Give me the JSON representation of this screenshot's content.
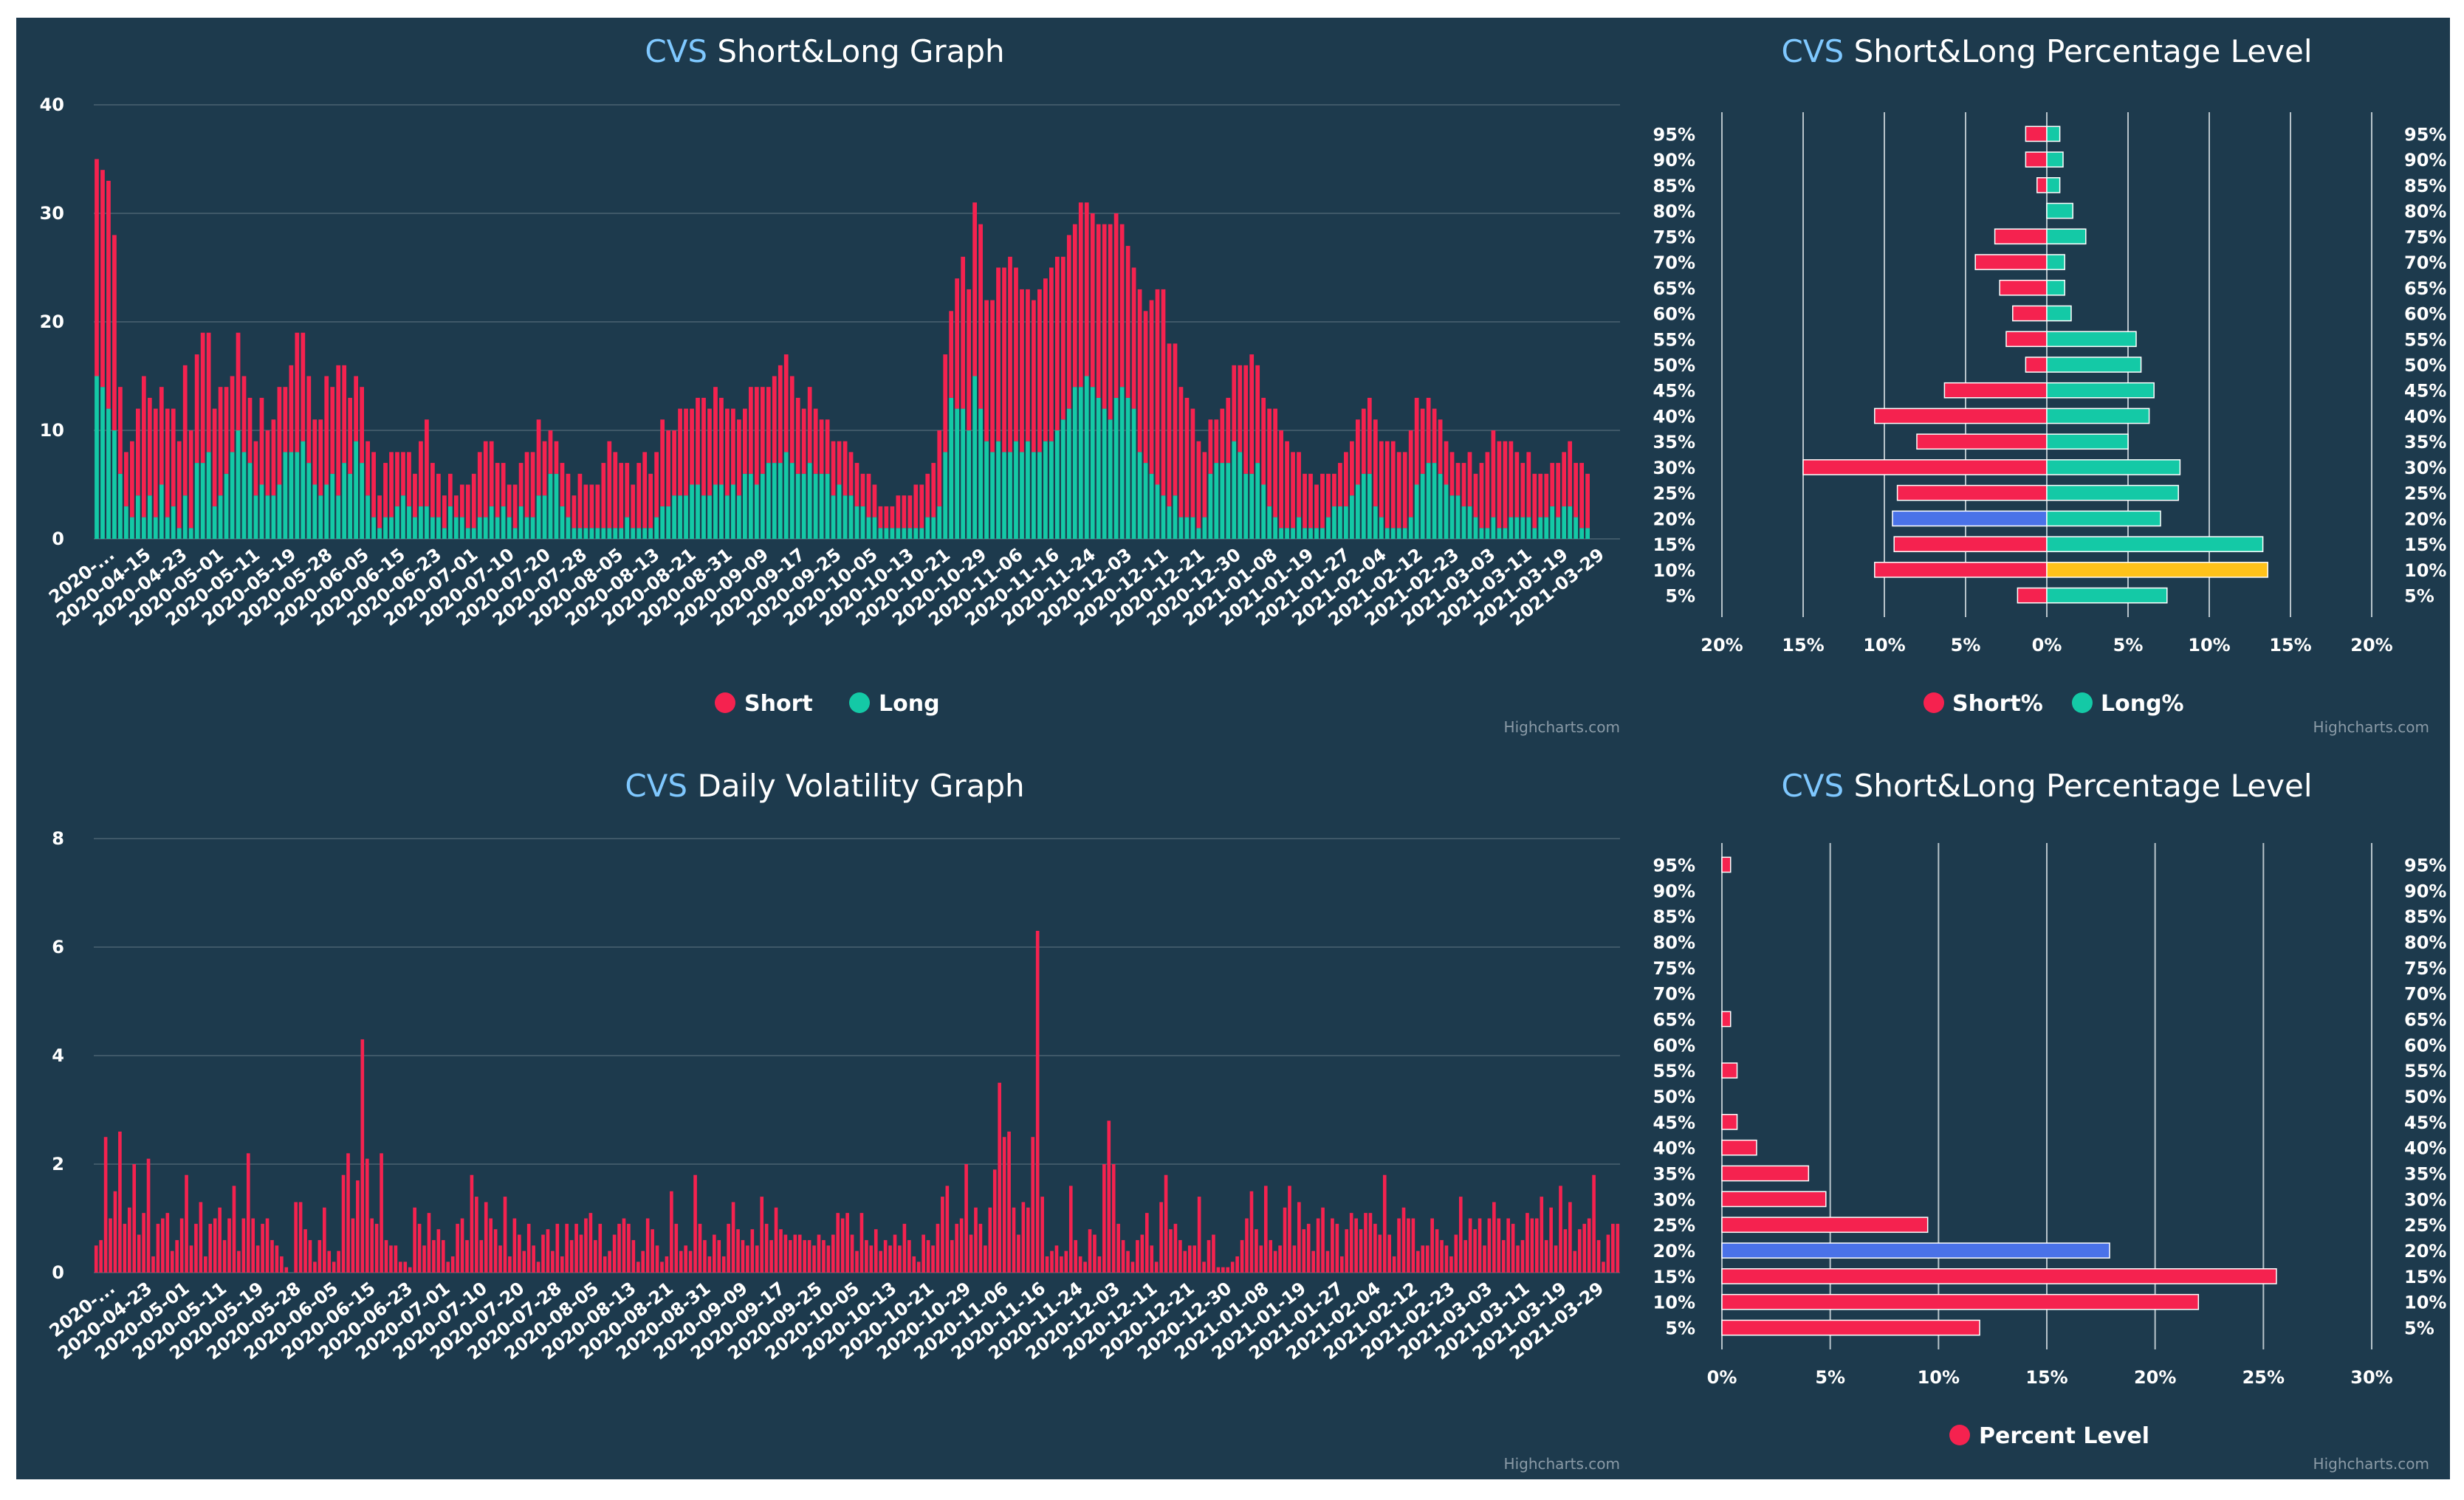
{
  "colors": {
    "background": "#1d3a4d",
    "short": "#f5224f",
    "long": "#14c9a6",
    "highlight_blue": "#4a72e8",
    "highlight_yellow": "#ffc21a",
    "grid": "#3f5868",
    "text": "#ffffff",
    "ticker": "#7fc8ff"
  },
  "credit": "Highcharts.com",
  "chart_data": [
    {
      "id": "short-long-graph",
      "type": "bar",
      "stacked": true,
      "ticker": "CVS",
      "title": "Short&Long Graph",
      "ylim": [
        0,
        40
      ],
      "yticks": [
        "0",
        "10",
        "20",
        "30",
        "40"
      ],
      "xticks": [
        "2020-...",
        "2020-04-15",
        "2020-04-23",
        "2020-05-01",
        "2020-05-11",
        "2020-05-19",
        "2020-05-28",
        "2020-06-05",
        "2020-06-15",
        "2020-06-23",
        "2020-07-01",
        "2020-07-10",
        "2020-07-20",
        "2020-07-28",
        "2020-08-05",
        "2020-08-13",
        "2020-08-21",
        "2020-08-31",
        "2020-09-09",
        "2020-09-17",
        "2020-09-25",
        "2020-10-05",
        "2020-10-13",
        "2020-10-21",
        "2020-10-29",
        "2020-11-06",
        "2020-11-16",
        "2020-11-24",
        "2020-12-03",
        "2020-12-11",
        "2020-12-21",
        "2020-12-30",
        "2021-01-08",
        "2021-01-19",
        "2021-01-27",
        "2021-02-04",
        "2021-02-12",
        "2021-02-23",
        "2021-03-03",
        "2021-03-11",
        "2021-03-19",
        "2021-03-29"
      ],
      "series": [
        {
          "name": "Short",
          "color_key": "short",
          "values": [
            20,
            20,
            21,
            18,
            8,
            5,
            7,
            8,
            13,
            9,
            10,
            9,
            10,
            9,
            8,
            12,
            9,
            10,
            12,
            11,
            9,
            10,
            8,
            7,
            9,
            7,
            6,
            5,
            8,
            6,
            7,
            9,
            6,
            8,
            11,
            10,
            8,
            6,
            7,
            10,
            8,
            12,
            9,
            7,
            6,
            7,
            5,
            6,
            3,
            5,
            6,
            5,
            4,
            5,
            4,
            6,
            8,
            5,
            4,
            3,
            3,
            2,
            3,
            4,
            5,
            6,
            7,
            6,
            5,
            4,
            3,
            4,
            4,
            6,
            6,
            7,
            5,
            4,
            3,
            4,
            4,
            3,
            5,
            4,
            4,
            4,
            6,
            8,
            7,
            6,
            5,
            4,
            6,
            7,
            5,
            6,
            8,
            7,
            6,
            8,
            8,
            7,
            8,
            9,
            8,
            9,
            8,
            8,
            7,
            7,
            6,
            8,
            9,
            8,
            7,
            8,
            9,
            9,
            8,
            7,
            6,
            7,
            6,
            5,
            5,
            5,
            4,
            5,
            4,
            4,
            3,
            4,
            3,
            2,
            2,
            2,
            3,
            3,
            3,
            4,
            4,
            4,
            5,
            7,
            9,
            8,
            12,
            14,
            13,
            16,
            17,
            13,
            14,
            16,
            17,
            18,
            16,
            15,
            14,
            14,
            15,
            15,
            16,
            16,
            15,
            16,
            15,
            17,
            16,
            16,
            16,
            17,
            18,
            17,
            15,
            14,
            13,
            15,
            14,
            16,
            18,
            19,
            15,
            14,
            12,
            11,
            10,
            8,
            6,
            5,
            4,
            5,
            6,
            7,
            8,
            10,
            11,
            9,
            8,
            9,
            10,
            9,
            8,
            7,
            6,
            5,
            5,
            4,
            5,
            4,
            3,
            4,
            5,
            5,
            6,
            6,
            7,
            8,
            7,
            8,
            8,
            7,
            7,
            8,
            8,
            6,
            6,
            5,
            5,
            4,
            4,
            3,
            4,
            5,
            4,
            6,
            7,
            8,
            8,
            8,
            7,
            6,
            5,
            6,
            5,
            4,
            4,
            4,
            5,
            5,
            6,
            5,
            6,
            5,
            6,
            6,
            5,
            5,
            4
          ]
        },
        {
          "name": "Long",
          "color_key": "long",
          "values": [
            15,
            14,
            12,
            10,
            6,
            3,
            2,
            4,
            2,
            4,
            2,
            5,
            2,
            3,
            1,
            4,
            1,
            7,
            7,
            8,
            3,
            4,
            6,
            8,
            10,
            8,
            7,
            4,
            5,
            4,
            4,
            5,
            8,
            8,
            8,
            9,
            7,
            5,
            4,
            5,
            6,
            4,
            7,
            6,
            9,
            7,
            4,
            2,
            1,
            2,
            2,
            3,
            4,
            3,
            2,
            3,
            3,
            2,
            2,
            1,
            3,
            2,
            2,
            1,
            1,
            2,
            2,
            3,
            2,
            3,
            2,
            1,
            3,
            2,
            2,
            4,
            4,
            6,
            6,
            3,
            2,
            1,
            1,
            1,
            1,
            1,
            1,
            1,
            1,
            1,
            2,
            1,
            1,
            1,
            1,
            2,
            3,
            3,
            4,
            4,
            4,
            5,
            5,
            4,
            4,
            5,
            5,
            4,
            5,
            4,
            6,
            6,
            5,
            6,
            7,
            7,
            7,
            8,
            7,
            6,
            6,
            7,
            6,
            6,
            6,
            4,
            5,
            4,
            4,
            3,
            3,
            2,
            2,
            1,
            1,
            1,
            1,
            1,
            1,
            1,
            1,
            2,
            2,
            3,
            8,
            13,
            12,
            12,
            10,
            15,
            12,
            9,
            8,
            9,
            8,
            8,
            9,
            8,
            9,
            8,
            8,
            9,
            9,
            10,
            11,
            12,
            14,
            14,
            15,
            14,
            13,
            12,
            11,
            13,
            14,
            13,
            12,
            8,
            7,
            6,
            5,
            4,
            3,
            4,
            2,
            2,
            2,
            1,
            2,
            6,
            7,
            7,
            7,
            9,
            8,
            6,
            6,
            7,
            5,
            3,
            2,
            1,
            1,
            1,
            2,
            1,
            1,
            1,
            1,
            2,
            3,
            3,
            3,
            4,
            5,
            6,
            6,
            3,
            2,
            1,
            1,
            1,
            1,
            2,
            5,
            6,
            7,
            7,
            6,
            5,
            4,
            4,
            3,
            3,
            2,
            1,
            1,
            2,
            1,
            1,
            2,
            2,
            2,
            2,
            1,
            2,
            2,
            3,
            2,
            3,
            3,
            2,
            1,
            1
          ]
        }
      ]
    },
    {
      "id": "daily-volatility-graph",
      "type": "bar",
      "ticker": "CVS",
      "title": "Daily Volatility Graph",
      "ylim": [
        0,
        8
      ],
      "yticks": [
        "0",
        "2",
        "4",
        "6",
        "8"
      ],
      "xticks": [
        "2020-...",
        "2020-04-23",
        "2020-05-01",
        "2020-05-11",
        "2020-05-19",
        "2020-05-28",
        "2020-06-05",
        "2020-06-15",
        "2020-06-23",
        "2020-07-01",
        "2020-07-10",
        "2020-07-20",
        "2020-07-28",
        "2020-08-05",
        "2020-08-13",
        "2020-08-21",
        "2020-08-31",
        "2020-09-09",
        "2020-09-17",
        "2020-09-25",
        "2020-10-05",
        "2020-10-13",
        "2020-10-21",
        "2020-10-29",
        "2020-11-06",
        "2020-11-16",
        "2020-11-24",
        "2020-12-03",
        "2020-12-11",
        "2020-12-21",
        "2020-12-30",
        "2021-01-08",
        "2021-01-19",
        "2021-01-27",
        "2021-02-04",
        "2021-02-12",
        "2021-02-23",
        "2021-03-03",
        "2021-03-11",
        "2021-03-19",
        "2021-03-29"
      ],
      "series": [
        {
          "name": "Volatility",
          "color_key": "short",
          "values": [
            0.5,
            0.6,
            2.5,
            1.0,
            1.5,
            2.6,
            0.9,
            1.2,
            2.0,
            0.7,
            1.1,
            2.1,
            0.3,
            0.9,
            1.0,
            1.1,
            0.4,
            0.6,
            1.0,
            1.8,
            0.5,
            0.9,
            1.3,
            0.3,
            0.9,
            1.0,
            1.2,
            0.6,
            1.0,
            1.6,
            0.4,
            1.0,
            2.2,
            1.0,
            0.5,
            0.9,
            1.0,
            0.6,
            0.5,
            0.3,
            0.1,
            0.0,
            1.3,
            1.3,
            0.8,
            0.6,
            0.2,
            0.6,
            1.2,
            0.4,
            0.2,
            0.4,
            1.8,
            2.2,
            1.0,
            1.7,
            4.3,
            2.1,
            1.0,
            0.9,
            2.2,
            0.6,
            0.5,
            0.5,
            0.2,
            0.2,
            0.1,
            1.2,
            0.9,
            0.5,
            1.1,
            0.6,
            0.8,
            0.6,
            0.2,
            0.3,
            0.9,
            1.0,
            0.6,
            1.8,
            1.4,
            0.6,
            1.3,
            1.0,
            0.8,
            0.5,
            1.4,
            0.3,
            1.0,
            0.7,
            0.4,
            0.9,
            0.5,
            0.2,
            0.7,
            0.8,
            0.4,
            0.9,
            0.3,
            0.9,
            0.6,
            0.9,
            0.7,
            1.0,
            1.1,
            0.6,
            0.9,
            0.3,
            0.4,
            0.7,
            0.9,
            1.0,
            0.9,
            0.6,
            0.2,
            0.4,
            1.0,
            0.8,
            0.5,
            0.2,
            0.3,
            1.5,
            0.9,
            0.4,
            0.5,
            0.4,
            1.8,
            0.9,
            0.6,
            0.3,
            0.7,
            0.6,
            0.3,
            0.9,
            1.3,
            0.8,
            0.6,
            0.5,
            0.8,
            0.5,
            1.4,
            0.9,
            0.6,
            1.2,
            0.8,
            0.7,
            0.6,
            0.7,
            0.7,
            0.6,
            0.6,
            0.5,
            0.7,
            0.6,
            0.5,
            0.7,
            1.1,
            1.0,
            1.1,
            0.7,
            0.4,
            1.1,
            0.6,
            0.5,
            0.8,
            0.4,
            0.6,
            0.5,
            0.7,
            0.5,
            0.9,
            0.6,
            0.3,
            0.2,
            0.7,
            0.6,
            0.5,
            0.9,
            1.4,
            1.6,
            0.6,
            0.9,
            1.0,
            2.0,
            0.7,
            1.2,
            0.9,
            0.5,
            1.2,
            1.9,
            3.5,
            2.5,
            2.6,
            1.2,
            0.7,
            1.3,
            1.2,
            2.5,
            6.3,
            1.4,
            0.3,
            0.4,
            0.5,
            0.3,
            0.4,
            1.6,
            0.6,
            0.3,
            0.2,
            0.8,
            0.7,
            0.3,
            2.0,
            2.8,
            2.0,
            0.9,
            0.6,
            0.4,
            0.2,
            0.6,
            0.7,
            1.1,
            0.5,
            0.2,
            1.3,
            1.8,
            0.8,
            0.9,
            0.6,
            0.4,
            0.5,
            0.5,
            1.4,
            0.2,
            0.6,
            0.7,
            0.1,
            0.1,
            0.1,
            0.2,
            0.3,
            0.6,
            1.0,
            1.5,
            0.8,
            0.5,
            1.6,
            0.6,
            0.4,
            0.5,
            1.2,
            1.6,
            0.5,
            1.3,
            0.8,
            0.9,
            0.4,
            1.0,
            1.2,
            0.4,
            1.0,
            0.9,
            0.3,
            0.8,
            1.1,
            1.0,
            0.8,
            1.1,
            1.1,
            0.9,
            0.7,
            1.8,
            0.7,
            0.3,
            1.0,
            1.2,
            1.0,
            1.0,
            0.4,
            0.5,
            0.5,
            1.0,
            0.8,
            0.6,
            0.5,
            0.3,
            0.7,
            1.4,
            0.6,
            1.0,
            0.8,
            1.0,
            0.5,
            1.0,
            1.3,
            1.0,
            0.6,
            1.0,
            0.9,
            0.5,
            0.6,
            1.1,
            1.0,
            1.0,
            1.4,
            0.6,
            1.2,
            0.5,
            1.6,
            0.8,
            1.3,
            0.4,
            0.8,
            0.9,
            1.0,
            1.8,
            0.6,
            0.2,
            0.7,
            0.9,
            0.9
          ]
        }
      ]
    },
    {
      "id": "percentage-level-top",
      "type": "bar",
      "orientation": "horizontal",
      "diverging": true,
      "ticker": "CVS",
      "title": "Short&Long Percentage Level",
      "categories": [
        "95%",
        "90%",
        "85%",
        "80%",
        "75%",
        "70%",
        "65%",
        "60%",
        "55%",
        "50%",
        "45%",
        "40%",
        "35%",
        "30%",
        "25%",
        "20%",
        "15%",
        "10%",
        "5%"
      ],
      "xlim": [
        -20,
        20
      ],
      "xticks": [
        "20%",
        "15%",
        "10%",
        "5%",
        "0%",
        "5%",
        "10%",
        "15%",
        "20%"
      ],
      "series": [
        {
          "name": "Short%",
          "color_key": "short",
          "values": [
            1.3,
            1.3,
            0.6,
            0,
            3.2,
            4.4,
            2.9,
            2.1,
            2.5,
            1.3,
            6.3,
            10.6,
            8.0,
            15.0,
            9.2,
            9.5,
            9.4,
            10.6,
            1.8
          ],
          "highlight": {
            "15": "highlight_blue"
          }
        },
        {
          "name": "Long%",
          "color_key": "long",
          "values": [
            0.8,
            1.0,
            0.8,
            1.6,
            2.4,
            1.1,
            1.1,
            1.5,
            5.5,
            5.8,
            6.6,
            6.3,
            5.0,
            8.2,
            8.1,
            7.0,
            13.3,
            13.6,
            7.4
          ],
          "highlight": {
            "17": "highlight_yellow"
          }
        }
      ]
    },
    {
      "id": "percentage-level-bottom",
      "type": "bar",
      "orientation": "horizontal",
      "ticker": "CVS",
      "title": "Short&Long Percentage Level",
      "categories": [
        "95%",
        "90%",
        "85%",
        "80%",
        "75%",
        "70%",
        "65%",
        "60%",
        "55%",
        "50%",
        "45%",
        "40%",
        "35%",
        "30%",
        "25%",
        "20%",
        "15%",
        "10%",
        "5%"
      ],
      "xlim": [
        0,
        30
      ],
      "xticks": [
        "0%",
        "5%",
        "10%",
        "15%",
        "20%",
        "25%",
        "30%"
      ],
      "series": [
        {
          "name": "Percent Level",
          "color_key": "short",
          "values": [
            0.4,
            0,
            0,
            0,
            0,
            0,
            0.4,
            0,
            0.7,
            0,
            0.7,
            1.6,
            4.0,
            4.8,
            9.5,
            17.9,
            25.6,
            22.0,
            11.9
          ],
          "highlight": {
            "15": "highlight_blue"
          }
        }
      ]
    }
  ]
}
